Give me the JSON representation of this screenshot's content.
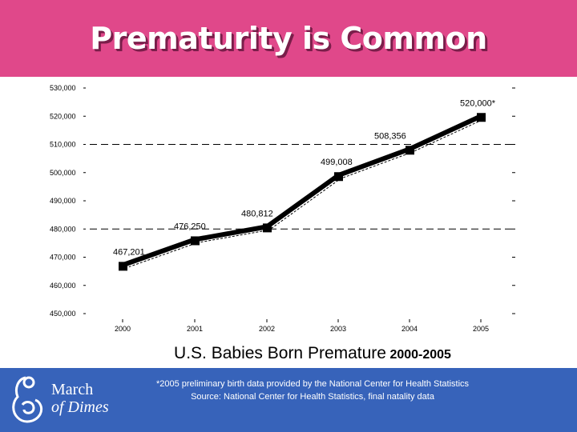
{
  "header": {
    "title": "Prematurity is Common"
  },
  "chart_data": {
    "type": "line",
    "title": "",
    "xlabel": "",
    "ylabel": "",
    "categories": [
      "2000",
      "2001",
      "2002",
      "2003",
      "2004",
      "2005"
    ],
    "series": [
      {
        "values": [
          467201,
          476250,
          480812,
          499008,
          508356,
          520000
        ]
      }
    ],
    "data_labels": [
      "467,201",
      "476,250",
      "480,812",
      "499,008",
      "508,356",
      "520,000*"
    ],
    "ylim": [
      450000,
      530000
    ],
    "y_ticks": [
      {
        "value": 530000,
        "label": "530,000"
      },
      {
        "value": 520000,
        "label": "520,000"
      },
      {
        "value": 510000,
        "label": "510,000"
      },
      {
        "value": 500000,
        "label": "500,000"
      },
      {
        "value": 490000,
        "label": "490,000"
      },
      {
        "value": 480000,
        "label": "480,000"
      },
      {
        "value": 470000,
        "label": "470,000"
      },
      {
        "value": 460000,
        "label": "460,000"
      },
      {
        "value": 450000,
        "label": "450,000"
      }
    ],
    "dashed_gridlines_at": [
      510000,
      480000
    ],
    "line_color": "#000000",
    "legend": "none"
  },
  "caption": {
    "main": "U.S. Babies Born Premature",
    "years": "2000-2005"
  },
  "footer": {
    "logo_line1": "March",
    "logo_line2": "of Dimes",
    "note1": "*2005 preliminary birth data provided by the National Center for Health Statistics",
    "note2": "Source: National Center for Health Statistics, final natality data"
  },
  "colors": {
    "header_bg": "#e0488a",
    "footer_bg": "#3763ba",
    "title_text": "#ffffff"
  }
}
